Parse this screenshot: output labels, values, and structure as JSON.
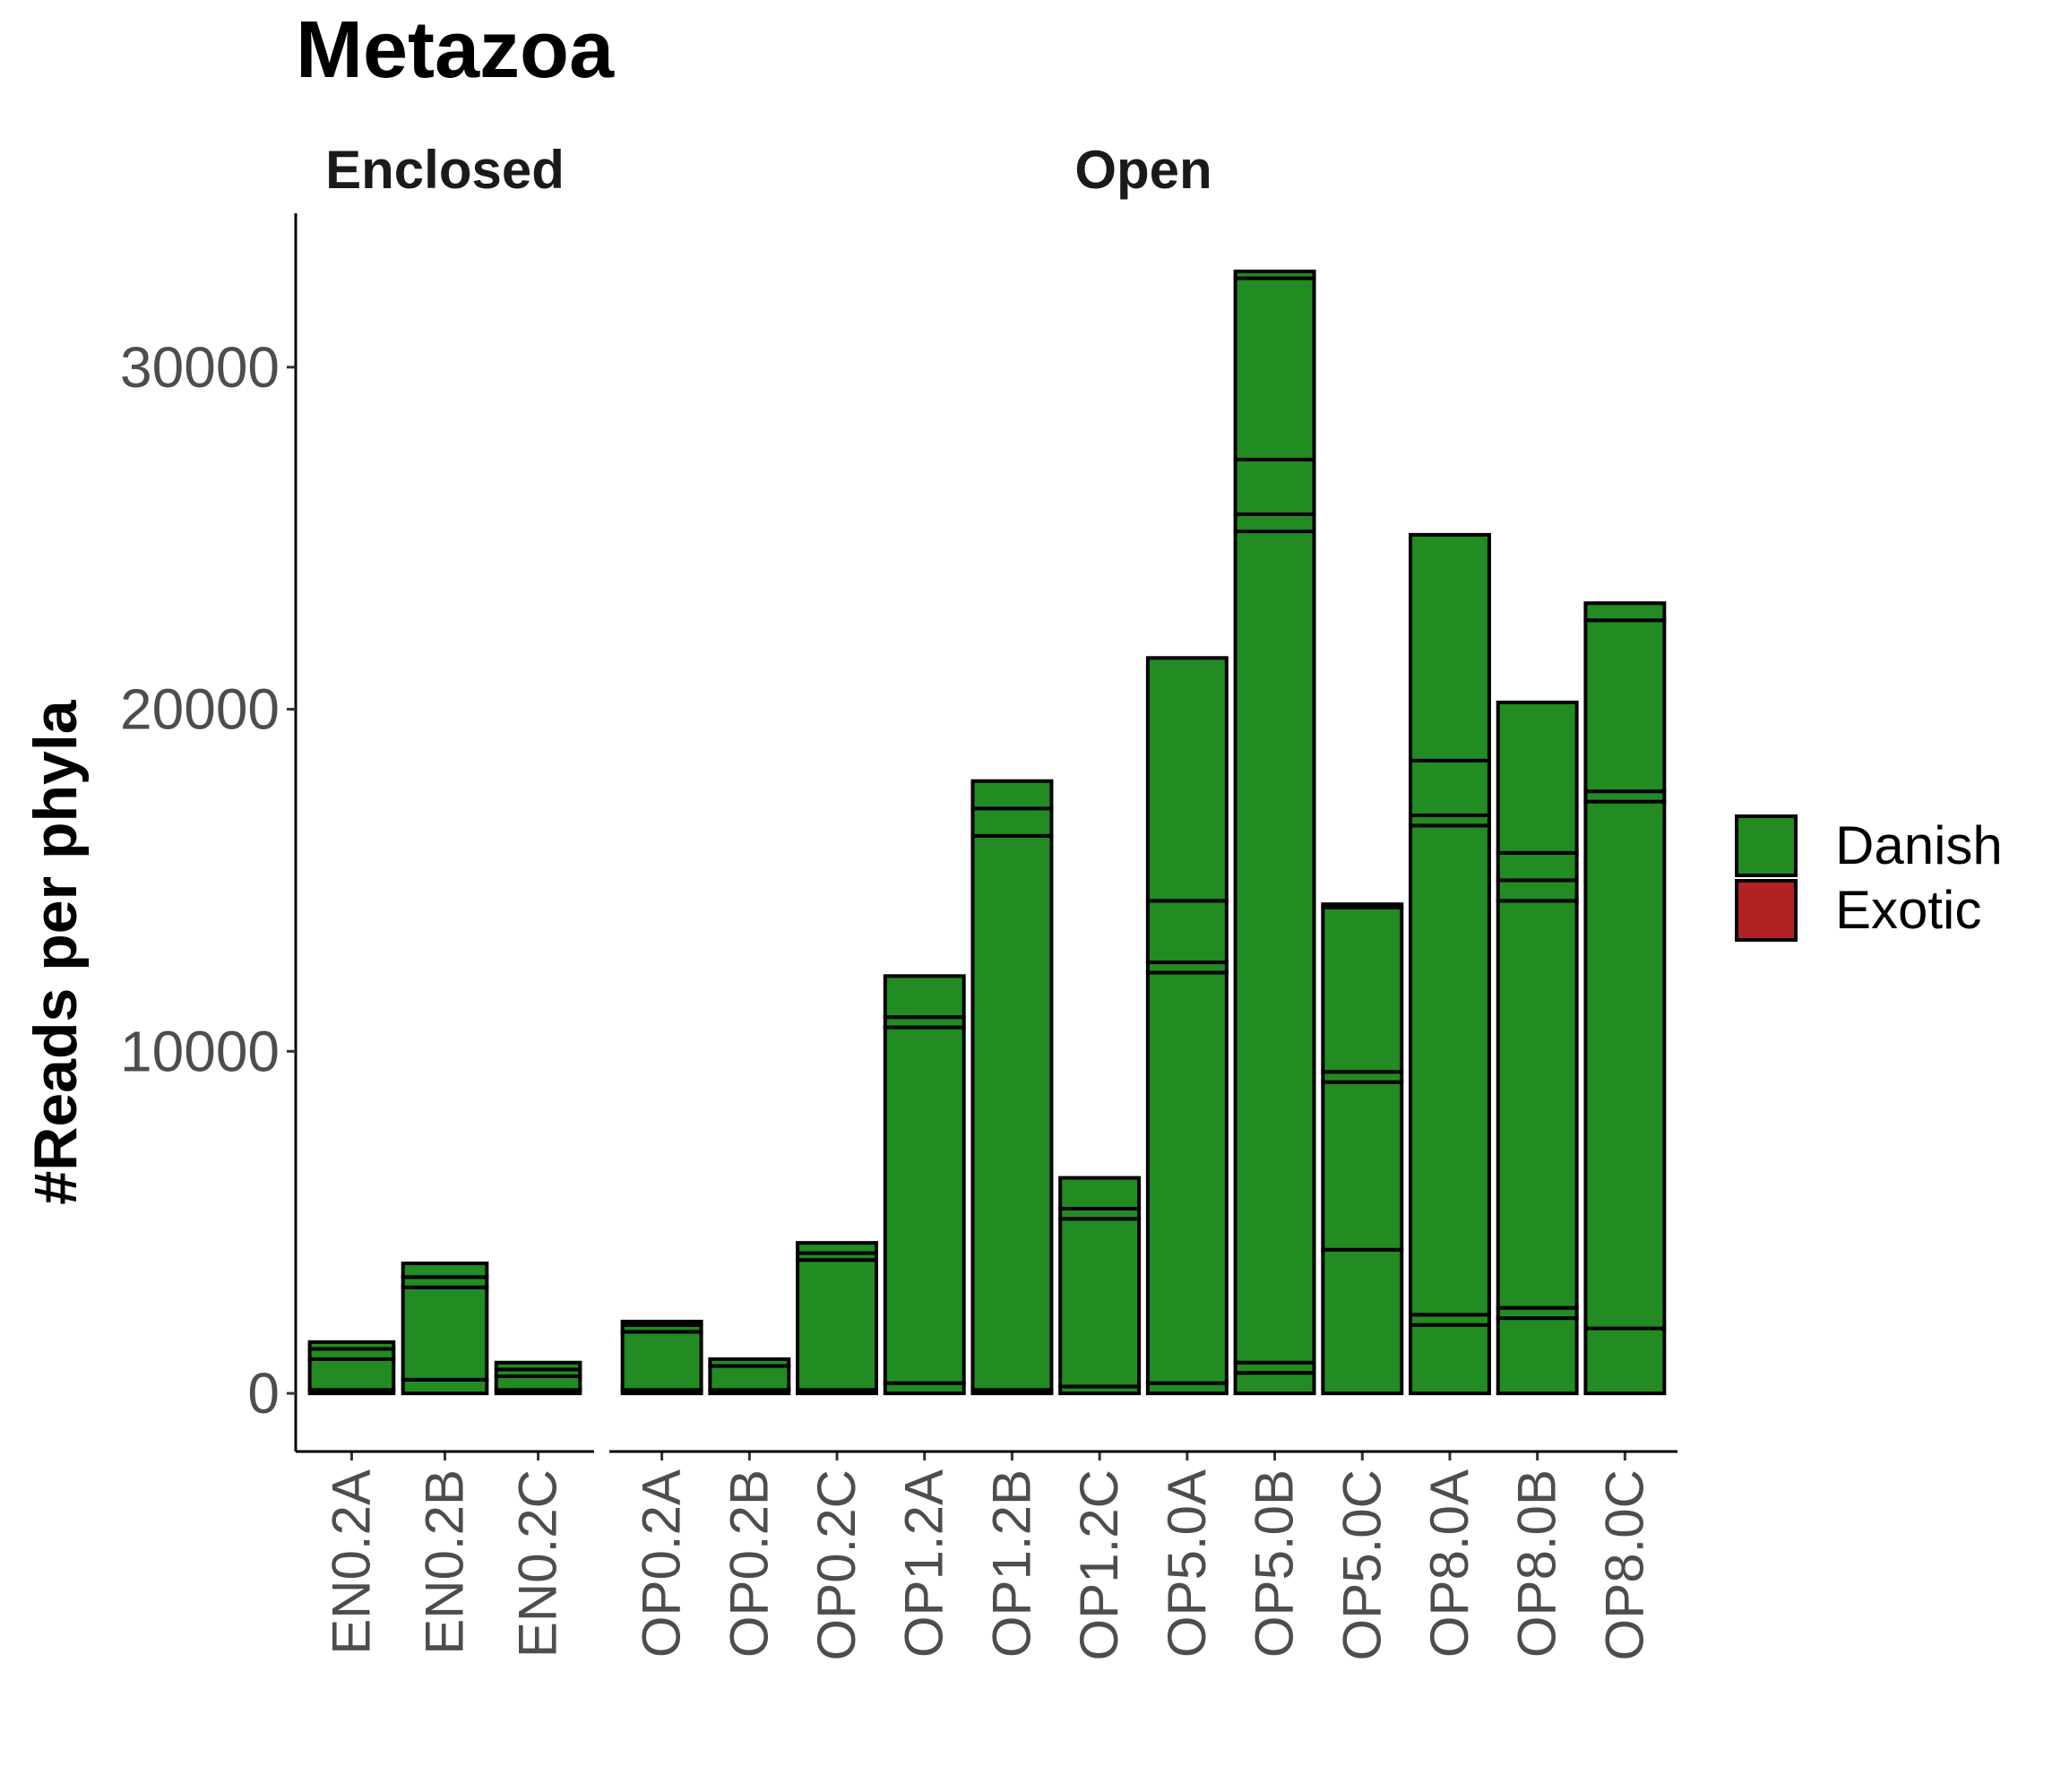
{
  "chart_data": {
    "type": "bar",
    "stacked": true,
    "title": "Metazoa",
    "ylabel": "#Reads per phyla",
    "xlabel": "",
    "ylim": [
      -1700,
      34500
    ],
    "yticks": [
      0,
      10000,
      20000,
      30000
    ],
    "ytick_labels": [
      "0",
      "10000",
      "20000",
      "30000"
    ],
    "grid": false,
    "legend_position": "right",
    "legend": [
      {
        "label": "Danish",
        "color": "#228B22"
      },
      {
        "label": "Exotic",
        "color": "#B22222"
      }
    ],
    "facets": [
      {
        "label": "Enclosed",
        "categories": [
          "EN0.2A",
          "EN0.2B",
          "EN0.2C"
        ],
        "stacks": [
          [
            100,
            900,
            300,
            200
          ],
          [
            400,
            2700,
            300,
            400
          ],
          [
            100,
            400,
            200,
            200
          ]
        ]
      },
      {
        "label": "Open",
        "categories": [
          "OP0.2A",
          "OP0.2B",
          "OP0.2C",
          "OP1.2A",
          "OP1.2B",
          "OP1.2C",
          "OP5.0A",
          "OP5.0B",
          "OP5.0C",
          "OP8.0A",
          "OP8.0B",
          "OP8.0C"
        ],
        "stacks": [
          [
            100,
            1700,
            200,
            100
          ],
          [
            100,
            700,
            200
          ],
          [
            100,
            3800,
            200,
            300
          ],
          [
            300,
            10400,
            300,
            1200
          ],
          [
            100,
            16200,
            800,
            800
          ],
          [
            200,
            4900,
            300,
            900
          ],
          [
            300,
            12000,
            300,
            1800,
            7100
          ],
          [
            600,
            300,
            24300,
            500,
            1600,
            5300,
            200
          ],
          [
            4200,
            4900,
            300,
            4800,
            100
          ],
          [
            2000,
            300,
            14300,
            300,
            1600,
            6600
          ],
          [
            2200,
            300,
            11900,
            600,
            800,
            4400
          ],
          [
            1900,
            15400,
            300,
            5000,
            500
          ]
        ]
      }
    ],
    "series_color": "#228B22",
    "edge_color": "#000000"
  }
}
